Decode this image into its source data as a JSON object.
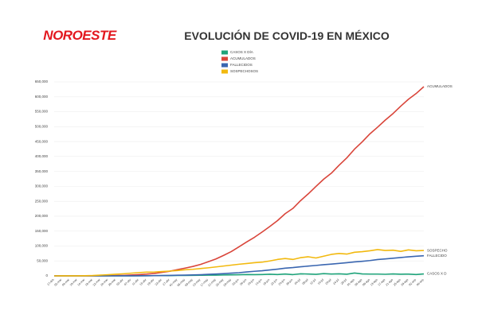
{
  "header": {
    "logo": "NOROESTE"
  },
  "chart_data": {
    "type": "line",
    "title": "EVOLUCIÓN DE COVID-19 EN MÉXICO",
    "categories": [
      "27-feb",
      "02-mar",
      "06-mar",
      "10-mar",
      "14-mar",
      "18-mar",
      "22-mar",
      "26-mar",
      "30-mar",
      "03-abr",
      "07-abr",
      "11-abr",
      "15-abr",
      "19-abr",
      "23-abr",
      "27-abr",
      "01-may",
      "05-may",
      "09-may",
      "13-may",
      "17-may",
      "21-may",
      "25-may",
      "29-may",
      "02-jun",
      "06-jun",
      "10-jun",
      "14-jun",
      "18-jun",
      "22-jun",
      "26-jun",
      "30-jun",
      "04-jul",
      "08-jul",
      "12-jul",
      "16-jul",
      "20-jul",
      "24-jul",
      "28-jul",
      "01-ago",
      "05-ago",
      "09-ago",
      "13-ago",
      "17-ago",
      "21-ago",
      "25-ago",
      "29-ago",
      "02-sep",
      "06-sep"
    ],
    "series": [
      {
        "name": "CASOS X DÍA",
        "end_label": "CASOS X D",
        "color": "#1fa37a",
        "values": [
          1,
          1,
          1,
          2,
          15,
          25,
          65,
          110,
          180,
          200,
          300,
          380,
          450,
          700,
          1000,
          900,
          1500,
          1400,
          1700,
          2000,
          2400,
          2600,
          3000,
          3400,
          3900,
          4400,
          4100,
          4600,
          5600,
          4600,
          6100,
          4300,
          6900,
          6300,
          5200,
          7600,
          6100,
          6800,
          5500,
          9600,
          6500,
          6000,
          6000,
          5300,
          6500,
          5600,
          5800,
          4400,
          6600
        ]
      },
      {
        "name": "ACUMULADOS",
        "end_label": "ACUMULADOS",
        "color": "#d9453a",
        "values": [
          2,
          5,
          7,
          7,
          26,
          118,
          316,
          585,
          1094,
          1688,
          2785,
          4219,
          5847,
          8261,
          11633,
          15529,
          20739,
          26025,
          31522,
          38324,
          47144,
          56594,
          68620,
          81400,
          97326,
          113619,
          129184,
          146837,
          165455,
          185122,
          208392,
          226089,
          252165,
          275003,
          299750,
          324041,
          344224,
          370712,
          395489,
          424637,
          448961,
          475902,
          498380,
          522162,
          543806,
          568621,
          591712,
          610957,
          634023
        ]
      },
      {
        "name": "FALLECIDOS",
        "end_label": "FALLECIDO",
        "color": "#3a66b0",
        "values": [
          0,
          0,
          0,
          0,
          0,
          1,
          4,
          8,
          28,
          60,
          141,
          296,
          449,
          857,
          1069,
          1434,
          2061,
          2507,
          3160,
          3926,
          5045,
          6090,
          7394,
          9044,
          10637,
          13170,
          15357,
          17141,
          19747,
          22584,
          25779,
          27769,
          30366,
          32796,
          35006,
          37574,
          39485,
          41908,
          44022,
          46688,
          48869,
          51311,
          54666,
          56757,
          59106,
          61450,
          63819,
          65816,
          67558
        ]
      },
      {
        "name": "SOSPECHOSOS",
        "end_label": "SOSPECHO",
        "color": "#f2b90f",
        "values": [
          10,
          50,
          100,
          300,
          500,
          1200,
          2500,
          3800,
          5500,
          7000,
          9000,
          11000,
          12500,
          13000,
          14500,
          16000,
          17800,
          20500,
          22000,
          24500,
          27000,
          30000,
          33000,
          36000,
          39000,
          41500,
          44000,
          46000,
          50000,
          55000,
          58000,
          55000,
          61000,
          64000,
          60000,
          66000,
          72000,
          75000,
          73000,
          79000,
          81000,
          84000,
          88000,
          85000,
          86000,
          82000,
          87000,
          84000,
          85000
        ]
      }
    ],
    "ylim": [
      0,
      650000
    ],
    "yticks": [
      0,
      {
        "value": 50000,
        "label": "50,000"
      },
      {
        "value": 100000,
        "label": "100,000"
      },
      {
        "value": 150000,
        "label": "150,000"
      },
      {
        "value": 200000,
        "label": "200,000"
      },
      {
        "value": 250000,
        "label": "250,000"
      },
      {
        "value": 300000,
        "label": "300,000"
      },
      {
        "value": 350000,
        "label": "350,000"
      },
      {
        "value": 400000,
        "label": "400,000"
      },
      {
        "value": 450000,
        "label": "450,000"
      },
      {
        "value": 500000,
        "label": "500,000"
      },
      {
        "value": 550000,
        "label": "550,000"
      },
      {
        "value": 600000,
        "label": "600,000"
      },
      {
        "value": 650000,
        "label": "650,000"
      }
    ],
    "grid": true
  }
}
